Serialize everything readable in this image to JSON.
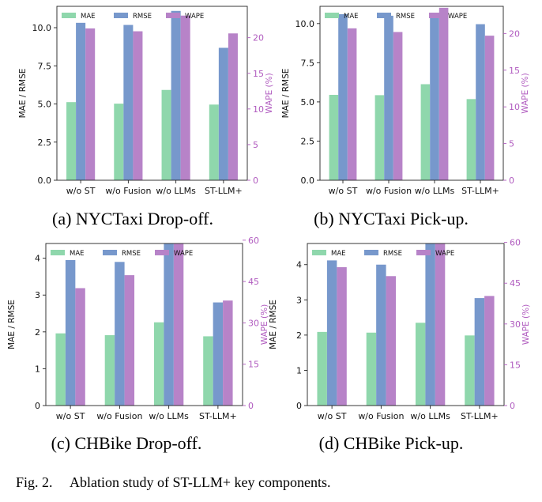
{
  "colors": {
    "mae": "#8fd7ac",
    "rmse": "#7798cc",
    "wape": "#b783c8",
    "wape_axis": "#b05bbf"
  },
  "chart_data": [
    {
      "type": "bar",
      "caption": "(a) NYCTaxi Drop-off.",
      "categories": [
        "w/o ST",
        "w/o Fusion",
        "w/o LLMs",
        "ST-LLM+"
      ],
      "series": [
        {
          "name": "MAE",
          "axis": "left",
          "values": [
            5.12,
            5.02,
            5.92,
            4.96
          ]
        },
        {
          "name": "RMSE",
          "axis": "left",
          "values": [
            10.32,
            10.18,
            11.1,
            8.68
          ]
        },
        {
          "name": "WAPE",
          "axis": "right",
          "values": [
            21.3,
            20.9,
            23.1,
            20.6
          ]
        }
      ],
      "ylabel": "MAE / RMSE",
      "ylabel_right": "WAPE (%)",
      "ylim": [
        0,
        11.4
      ],
      "yticks": [
        "0.0",
        "2.5",
        "5.0",
        "7.5",
        "10.0"
      ],
      "yticks_values": [
        0,
        2.5,
        5,
        7.5,
        10
      ],
      "ylim_right": [
        0,
        24.4
      ],
      "yticks_right": [
        "0",
        "5",
        "10",
        "15",
        "20"
      ],
      "yticks_right_values": [
        0,
        5,
        10,
        15,
        20
      ],
      "legend": "top-left"
    },
    {
      "type": "bar",
      "caption": "(b) NYCTaxi Pick-up.",
      "categories": [
        "w/o ST",
        "w/o Fusion",
        "w/o LLMs",
        "ST-LLM+"
      ],
      "series": [
        {
          "name": "MAE",
          "axis": "left",
          "values": [
            5.45,
            5.43,
            6.13,
            5.18
          ]
        },
        {
          "name": "RMSE",
          "axis": "left",
          "values": [
            10.6,
            10.5,
            10.6,
            9.96
          ]
        },
        {
          "name": "WAPE",
          "axis": "right",
          "values": [
            20.7,
            20.2,
            23.5,
            19.7
          ]
        }
      ],
      "ylabel": "MAE / RMSE",
      "ylabel_right": "WAPE (%)",
      "ylim": [
        0,
        11.1
      ],
      "yticks": [
        "0.0",
        "2.5",
        "5.0",
        "7.5",
        "10.0"
      ],
      "yticks_values": [
        0,
        2.5,
        5,
        7.5,
        10
      ],
      "ylim_right": [
        0,
        23.7
      ],
      "yticks_right": [
        "0",
        "5",
        "10",
        "15",
        "20"
      ],
      "yticks_right_values": [
        0,
        5,
        10,
        15,
        20
      ],
      "legend": "top-left"
    },
    {
      "type": "bar",
      "caption": "(c) CHBike Drop-off.",
      "categories": [
        "w/o ST",
        "w/o Fusion",
        "w/o LLMs",
        "ST-LLM+"
      ],
      "series": [
        {
          "name": "MAE",
          "axis": "left",
          "values": [
            1.96,
            1.91,
            2.26,
            1.88
          ]
        },
        {
          "name": "RMSE",
          "axis": "left",
          "values": [
            3.95,
            3.9,
            4.4,
            2.8
          ]
        },
        {
          "name": "WAPE",
          "axis": "right",
          "values": [
            42.6,
            47.3,
            58.8,
            38.1
          ]
        }
      ],
      "ylabel": "MAE / RMSE",
      "ylabel_right": "WAPE (%)",
      "ylim": [
        0,
        4.4
      ],
      "yticks": [
        "0",
        "1",
        "2",
        "3",
        "4"
      ],
      "yticks_values": [
        0,
        1,
        2,
        3,
        4
      ],
      "ylim_right": [
        0,
        58.8
      ],
      "yticks_right": [
        "0",
        "15",
        "30",
        "45",
        "60"
      ],
      "yticks_right_values": [
        0,
        15,
        30,
        45,
        60
      ],
      "legend": "top-left"
    },
    {
      "type": "bar",
      "caption": "(d) CHBike Pick-up.",
      "categories": [
        "w/o ST",
        "w/o Fusion",
        "w/o LLMs",
        "ST-LLM+"
      ],
      "series": [
        {
          "name": "MAE",
          "axis": "left",
          "values": [
            2.09,
            2.07,
            2.35,
            1.99
          ]
        },
        {
          "name": "RMSE",
          "axis": "left",
          "values": [
            4.12,
            4.0,
            4.6,
            3.05
          ]
        },
        {
          "name": "WAPE",
          "axis": "right",
          "values": [
            50.9,
            47.6,
            59.6,
            40.3
          ]
        }
      ],
      "ylabel": "MAE / RMSE",
      "ylabel_right": "WAPE (%)",
      "ylim": [
        0,
        4.6
      ],
      "yticks": [
        "0",
        "1",
        "2",
        "3",
        "4"
      ],
      "yticks_values": [
        0,
        1,
        2,
        3,
        4
      ],
      "ylim_right": [
        0,
        59.6
      ],
      "yticks_right": [
        "0",
        "15",
        "30",
        "45",
        "60"
      ],
      "yticks_right_values": [
        0,
        15,
        30,
        45,
        60
      ],
      "legend": "top-left"
    }
  ],
  "figure_caption": {
    "label": "Fig. 2.",
    "text": "Ablation study of ST-LLM+ key components."
  }
}
